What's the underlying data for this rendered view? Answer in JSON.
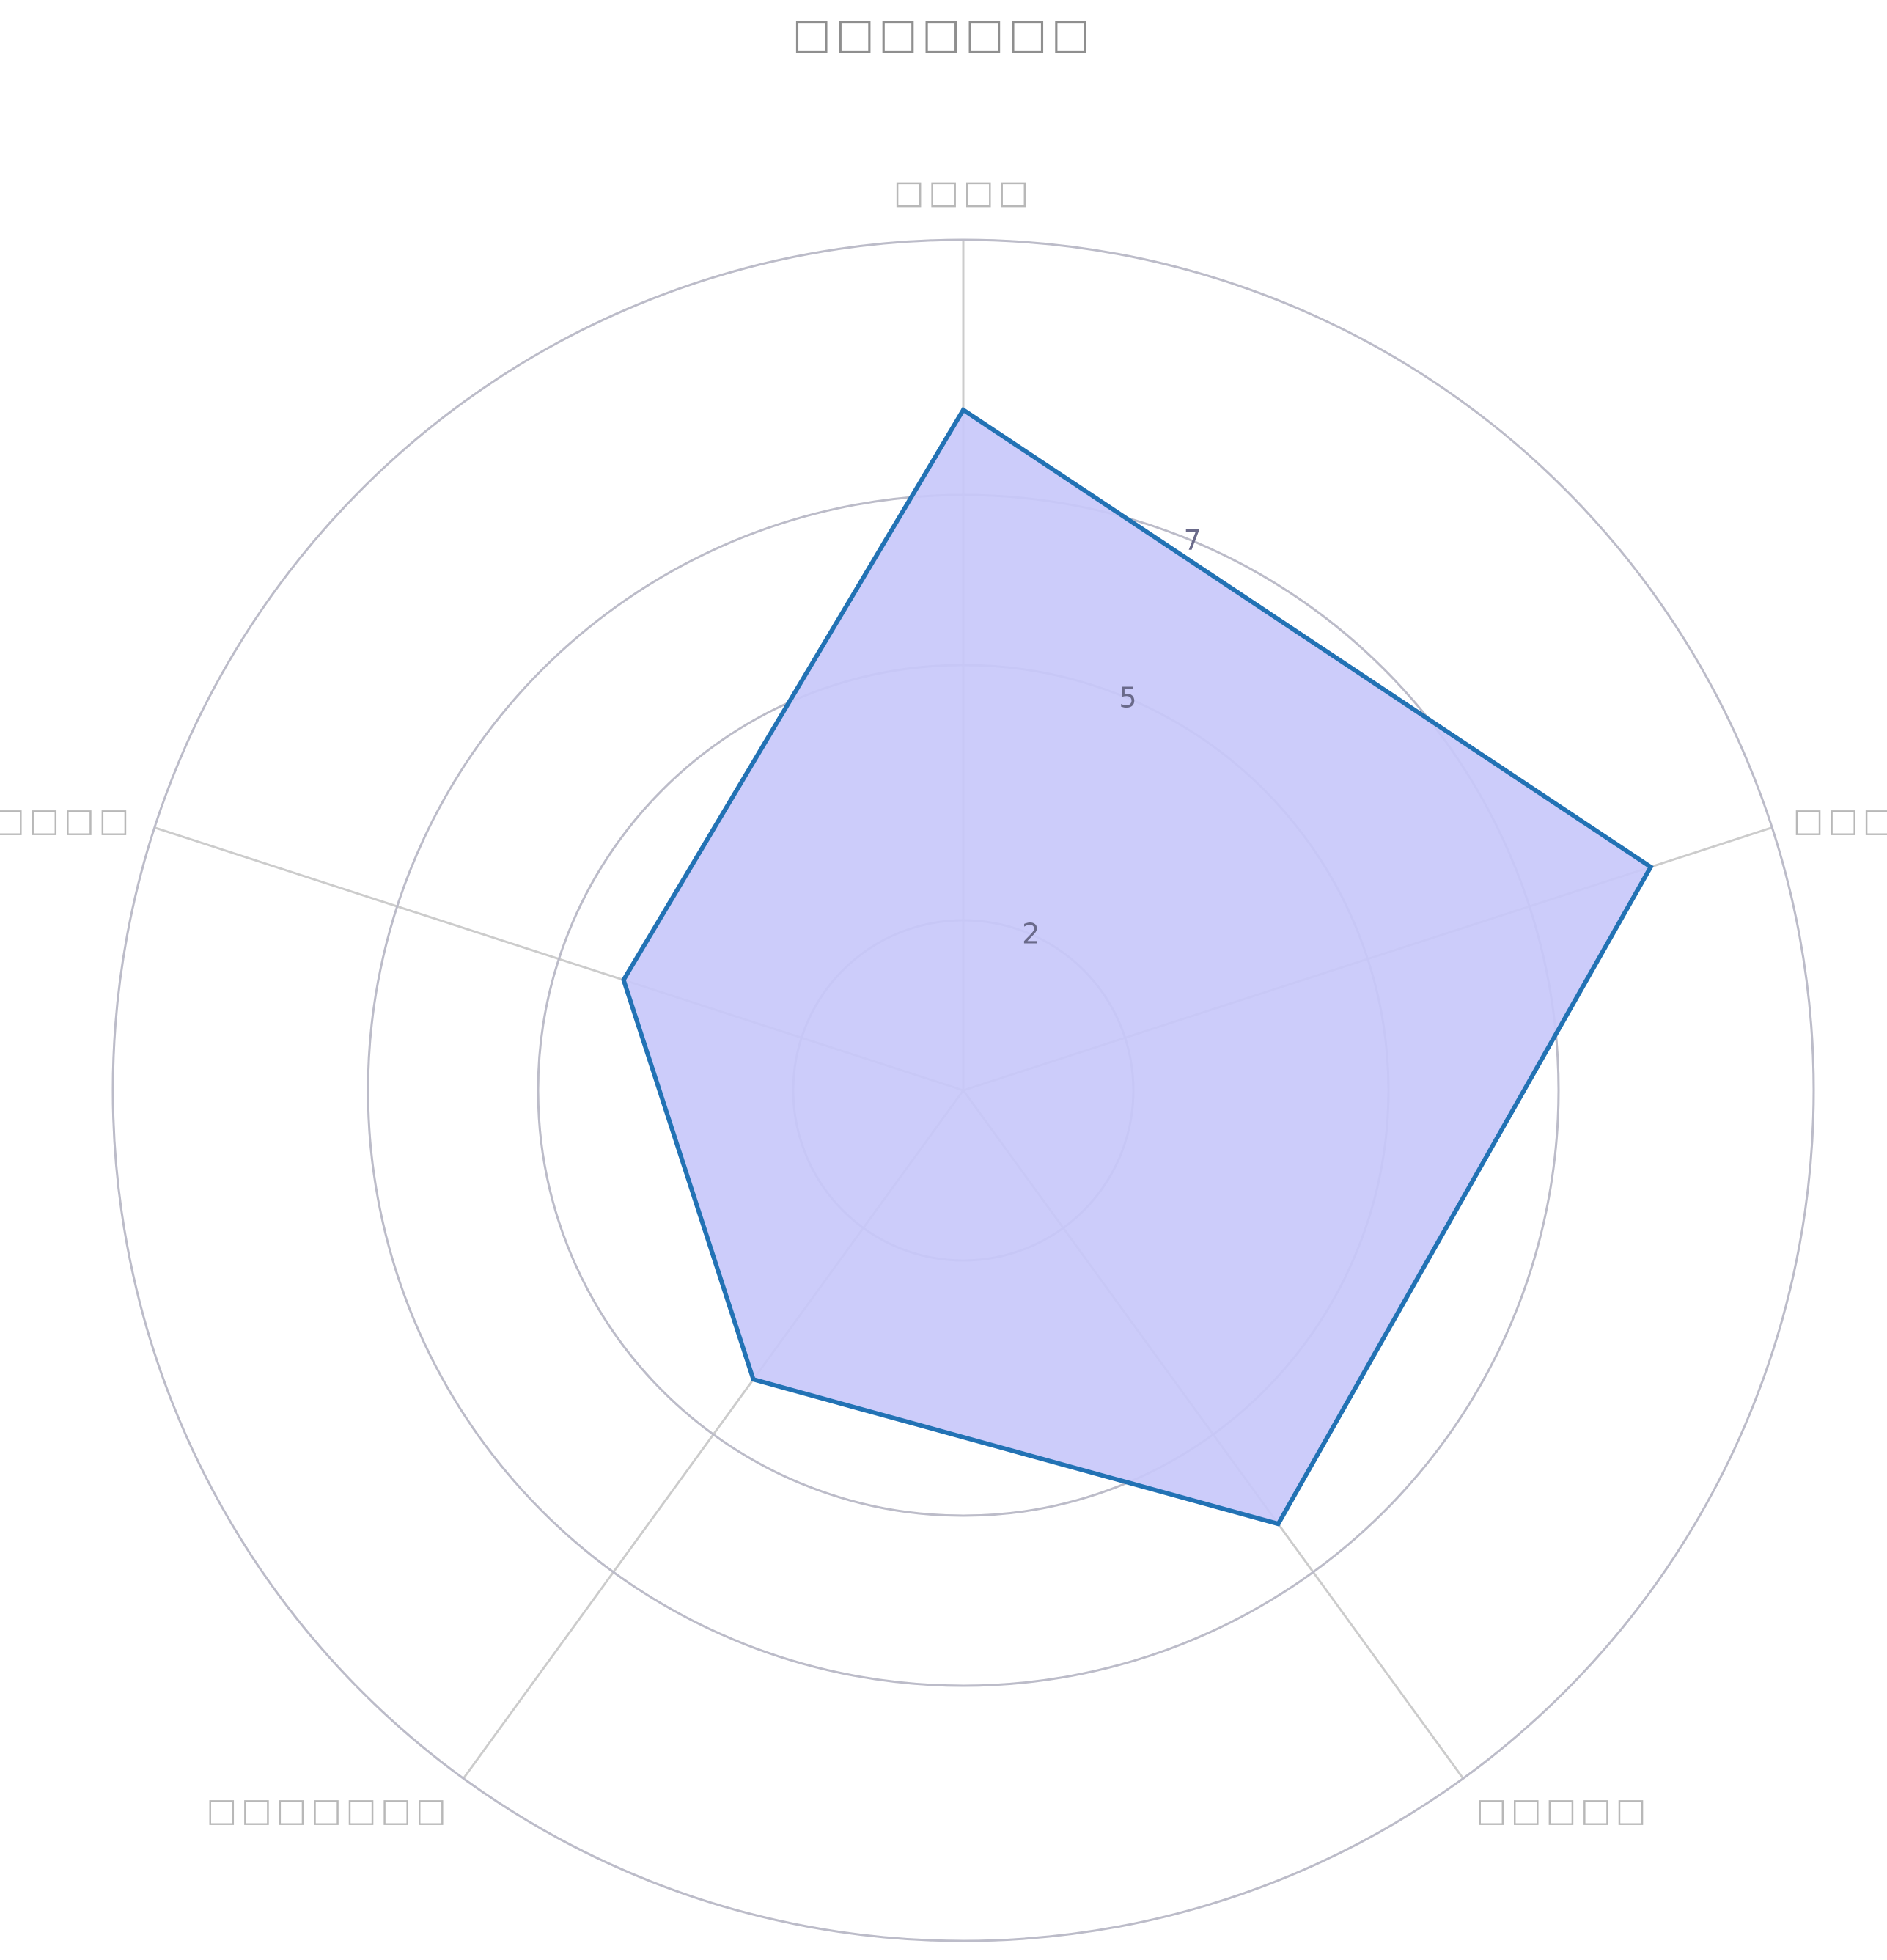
{
  "chart_data": {
    "type": "radar",
    "title": "□□□□□□□",
    "axes": [
      "□□□□",
      "□□□□",
      "□□□□□",
      "□□□□□□□",
      "□□□□□□□"
    ],
    "series": [
      {
        "values": [
          8,
          8.5,
          6.3,
          4.2,
          4.2
        ]
      }
    ],
    "rlim": [
      0,
      10
    ],
    "rings": [
      2,
      5,
      7,
      10
    ],
    "tick_labels": [
      "2",
      "5",
      "7"
    ],
    "colors": {
      "fill": "#c8c8fa",
      "line": "#2272b4",
      "grid": "#cccccc",
      "tick": "#6a6a8a",
      "label": "#b8b8b8"
    }
  }
}
